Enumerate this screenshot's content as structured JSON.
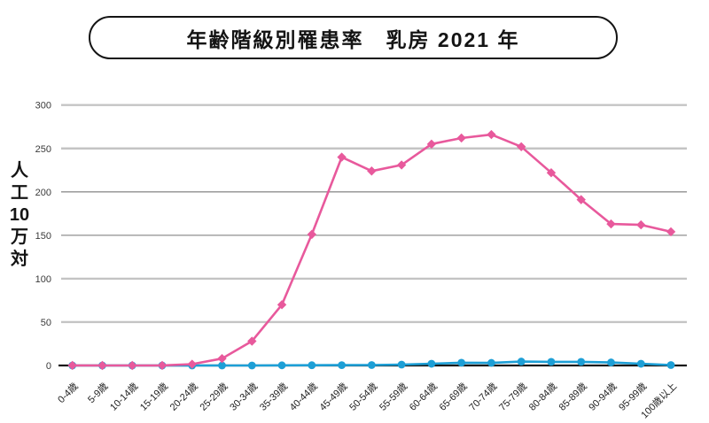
{
  "title": "年齢階級別罹患率　乳房 2021 年",
  "y_axis": {
    "unit_segments": [
      "人",
      "工",
      "10",
      "万",
      "対"
    ],
    "tick_labels": [
      "300",
      "250",
      "200",
      "150",
      "100",
      "50",
      "0"
    ]
  },
  "colors": {
    "pink_line": "#e8599c",
    "blue_line": "#1d9fd6",
    "grid_light": "#c4c4c4",
    "grid_dark": "#8f8f8f",
    "axis_line": "#1a1a1a",
    "tick_text": "#3a3a3a",
    "category_text": "#222222"
  },
  "chart_data": {
    "type": "line",
    "title": "年齢階級別罹患率 乳房 2021年",
    "ylabel": "人工10万対",
    "xlabel": "",
    "ylim": [
      0,
      300
    ],
    "y_ticks": [
      0,
      50,
      100,
      150,
      200,
      250,
      300
    ],
    "grid": true,
    "legend_position": "none",
    "categories": [
      "0-4歳",
      "5-9歳",
      "10-14歳",
      "15-19歳",
      "20-24歳",
      "25-29歳",
      "30-34歳",
      "35-39歳",
      "40-44歳",
      "45-49歳",
      "50-54歳",
      "55-59歳",
      "60-64歳",
      "65-69歳",
      "70-74歳",
      "75-79歳",
      "80-84歳",
      "85-89歳",
      "90-94歳",
      "95-99歳",
      "100歳以上"
    ],
    "series": [
      {
        "name": "blue-line",
        "color": "#1d9fd6",
        "marker": "circle",
        "values": [
          0,
          0,
          0,
          0,
          0,
          0,
          0,
          0.2,
          0.3,
          0.4,
          0.5,
          1,
          2,
          3.2,
          3,
          4.5,
          4.2,
          4.2,
          3.5,
          2,
          0.5
        ]
      },
      {
        "name": "pink-line",
        "color": "#e8599c",
        "marker": "diamond",
        "values": [
          0.1,
          0,
          0,
          0.1,
          1.5,
          8,
          28,
          70,
          151,
          240,
          224,
          231,
          255,
          262,
          266,
          252,
          222,
          191,
          163,
          162,
          154
        ]
      }
    ]
  }
}
